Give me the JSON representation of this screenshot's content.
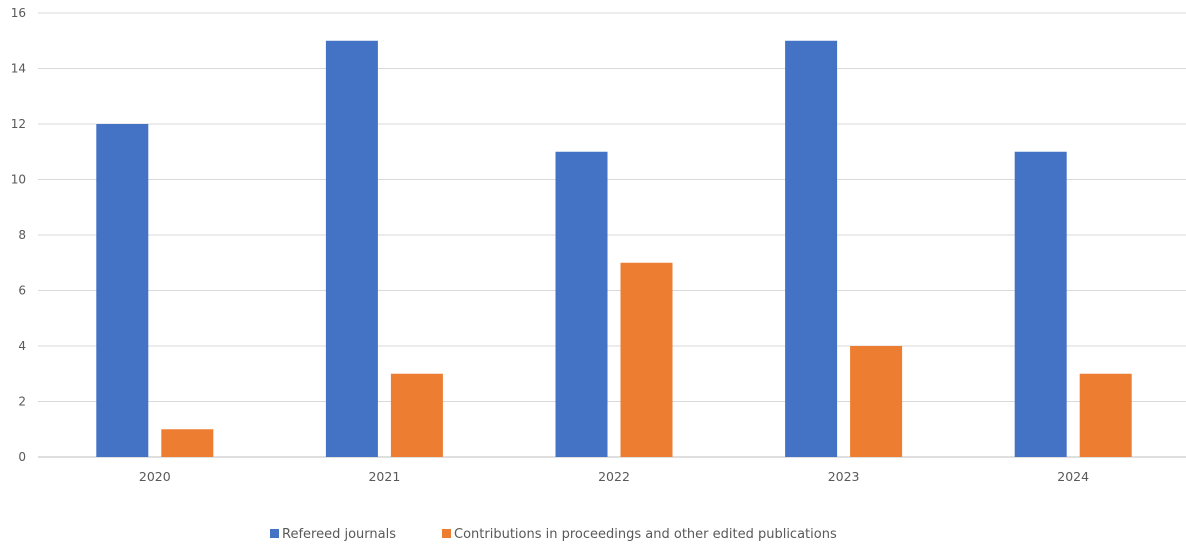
{
  "chart_data": {
    "type": "bar",
    "title": "",
    "xlabel": "",
    "ylabel": "",
    "categories": [
      "2020",
      "2021",
      "2022",
      "2023",
      "2024"
    ],
    "series": [
      {
        "name": "Refereed journals",
        "color": "#4472C4",
        "values": [
          12,
          15,
          11,
          15,
          11
        ]
      },
      {
        "name": "Contributions in proceedings and other edited publications",
        "color": "#ED7D31",
        "values": [
          1,
          3,
          7,
          4,
          3
        ]
      }
    ],
    "ylim": [
      0,
      16
    ],
    "yticks": [
      "0",
      "2",
      "4",
      "6",
      "8",
      "10",
      "12",
      "14",
      "16"
    ],
    "grid": true,
    "legend_position": "bottom-center"
  }
}
